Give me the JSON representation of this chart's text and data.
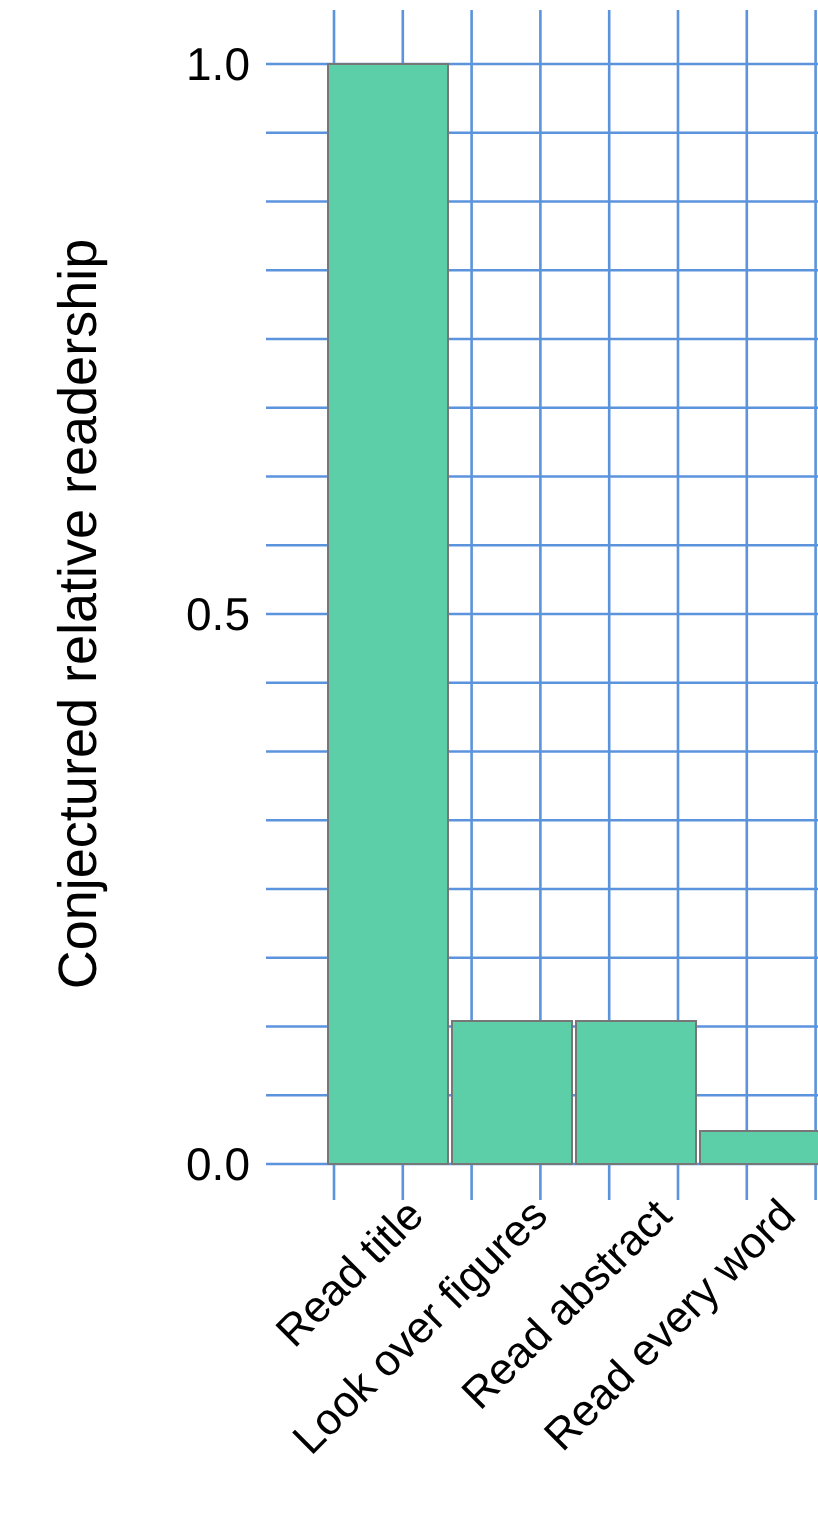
{
  "chart_data": {
    "type": "bar",
    "ylabel": "Conjectured relative readership",
    "categories": [
      "Read title",
      "Look over figures",
      "Read abstract",
      "Read every word"
    ],
    "values": [
      1.0,
      0.13,
      0.13,
      0.03
    ],
    "color": "#5dcfa8",
    "ylim": [
      0,
      1
    ],
    "yticks": [
      {
        "value": 0,
        "label": "0.0"
      },
      {
        "value": 0.0625,
        "label": null
      },
      {
        "value": 0.125,
        "label": null
      },
      {
        "value": 0.1875,
        "label": null
      },
      {
        "value": 0.25,
        "label": null
      },
      {
        "value": 0.3125,
        "label": null
      },
      {
        "value": 0.375,
        "label": null
      },
      {
        "value": 0.4375,
        "label": null
      },
      {
        "value": 0.5,
        "label": "0.5"
      },
      {
        "value": 0.5625,
        "label": null
      },
      {
        "value": 0.625,
        "label": null
      },
      {
        "value": 0.6875,
        "label": null
      },
      {
        "value": 0.75,
        "label": null
      },
      {
        "value": 0.8125,
        "label": null
      },
      {
        "value": 0.875,
        "label": null
      },
      {
        "value": 0.9375,
        "label": null
      },
      {
        "value": 1,
        "label": "1.0"
      }
    ],
    "grid": true
  }
}
